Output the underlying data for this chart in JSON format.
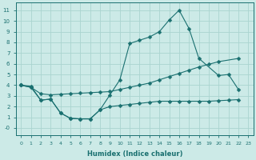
{
  "xlabel": "Humidex (Indice chaleur)",
  "background_color": "#cceae7",
  "grid_color": "#aad4d0",
  "line_color": "#1a7070",
  "xlim": [
    -0.5,
    23.5
  ],
  "ylim": [
    -0.7,
    11.7
  ],
  "xticks": [
    0,
    1,
    2,
    3,
    4,
    5,
    6,
    7,
    8,
    9,
    10,
    11,
    12,
    13,
    14,
    15,
    16,
    17,
    18,
    19,
    20,
    21,
    22,
    23
  ],
  "yticks": [
    0,
    1,
    2,
    3,
    4,
    5,
    6,
    7,
    8,
    9,
    10,
    11
  ],
  "ytick_labels": [
    "-0",
    "1",
    "2",
    "3",
    "4",
    "5",
    "6",
    "7",
    "8",
    "9",
    "10",
    "11"
  ],
  "line1_x": [
    0,
    1,
    2,
    3,
    4,
    5,
    6,
    7,
    8,
    9,
    10,
    11,
    12,
    13,
    14,
    15,
    16,
    17,
    18,
    20,
    21,
    22
  ],
  "line1_y": [
    4.0,
    3.9,
    2.6,
    2.7,
    1.4,
    0.9,
    0.85,
    0.85,
    1.7,
    3.1,
    4.5,
    7.9,
    8.2,
    8.5,
    9.0,
    10.1,
    11.0,
    9.3,
    6.5,
    4.9,
    5.0,
    3.6
  ],
  "line2_x": [
    0,
    1,
    2,
    3,
    4,
    5,
    6,
    7,
    8,
    9,
    10,
    11,
    12,
    13,
    14,
    15,
    16,
    17,
    18,
    19,
    20,
    22
  ],
  "line2_y": [
    4.0,
    3.8,
    3.2,
    3.1,
    3.15,
    3.2,
    3.25,
    3.3,
    3.35,
    3.4,
    3.6,
    3.8,
    4.0,
    4.2,
    4.5,
    4.8,
    5.1,
    5.4,
    5.7,
    5.95,
    6.2,
    6.5
  ],
  "line3_x": [
    0,
    1,
    2,
    3,
    4,
    5,
    6,
    7,
    8,
    9,
    10,
    11,
    12,
    13,
    14,
    15,
    16,
    17,
    18,
    19,
    20,
    21,
    22
  ],
  "line3_y": [
    4.0,
    3.8,
    2.6,
    2.7,
    1.4,
    0.9,
    0.85,
    0.85,
    1.7,
    2.0,
    2.1,
    2.2,
    2.3,
    2.4,
    2.5,
    2.5,
    2.5,
    2.5,
    2.5,
    2.5,
    2.55,
    2.6,
    2.65
  ],
  "markersize": 2.5
}
